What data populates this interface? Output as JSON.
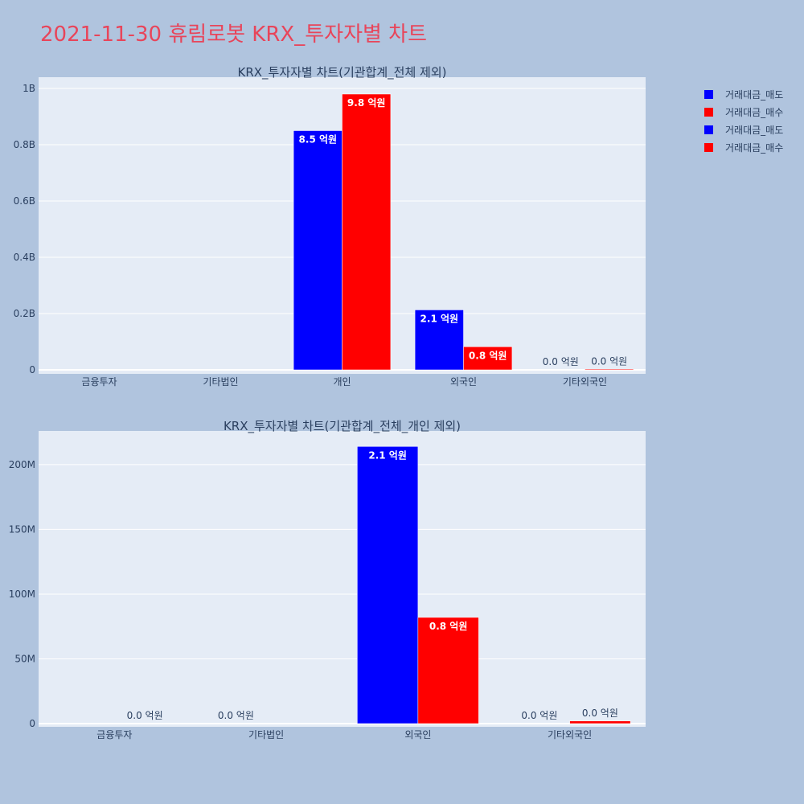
{
  "page_title": "2021-11-30 휴림로봇 KRX_투자자별 차트",
  "colors": {
    "sell": "#0000ff",
    "buy": "#ff0000",
    "plot_bg": "#e5ecf6",
    "paper_bg": "#b0c4de",
    "title": "#e8455a",
    "text": "#2a3f5f"
  },
  "legend": [
    {
      "label": "거래대금_매도",
      "color": "#0000ff"
    },
    {
      "label": "거래대금_매수",
      "color": "#ff0000"
    },
    {
      "label": "거래대금_매도",
      "color": "#0000ff"
    },
    {
      "label": "거래대금_매수",
      "color": "#ff0000"
    }
  ],
  "chart_data": [
    {
      "type": "bar",
      "title": "KRX_투자자별 차트(기관합계_전체 제외)",
      "categories": [
        "금융투자",
        "기타법인",
        "개인",
        "외국인",
        "기타외국인"
      ],
      "series": [
        {
          "name": "거래대금_매도",
          "color": "#0000ff",
          "values": [
            0,
            0,
            850000000,
            213000000,
            0
          ],
          "labels": [
            "",
            "",
            "8.5 억원",
            "2.1 억원",
            "0.0 억원"
          ]
        },
        {
          "name": "거래대금_매수",
          "color": "#ff0000",
          "values": [
            0,
            0,
            980000000,
            82000000,
            2000000
          ],
          "labels": [
            "",
            "",
            "9.8 억원",
            "0.8 억원",
            "0.0 억원"
          ]
        }
      ],
      "yticks": [
        0,
        200000000,
        400000000,
        600000000,
        800000000,
        1000000000
      ],
      "ytick_labels": [
        "0",
        "0.2B",
        "0.4B",
        "0.6B",
        "0.8B",
        "1B"
      ],
      "ylim": [
        0,
        1000000000
      ],
      "grid": true
    },
    {
      "type": "bar",
      "title": "KRX_투자자별 차트(기관합계_전체_개인 제외)",
      "categories": [
        "금융투자",
        "기타법인",
        "외국인",
        "기타외국인"
      ],
      "series": [
        {
          "name": "거래대금_매도",
          "color": "#0000ff",
          "values": [
            0,
            0,
            214000000,
            0
          ],
          "labels": [
            "",
            "0.0 억원",
            "2.1 억원",
            "0.0 억원"
          ]
        },
        {
          "name": "거래대금_매수",
          "color": "#ff0000",
          "values": [
            0,
            0,
            82000000,
            2000000
          ],
          "labels": [
            "0.0 억원",
            "",
            "0.8 억원",
            "0.0 억원"
          ]
        }
      ],
      "yticks": [
        0,
        50000000,
        100000000,
        150000000,
        200000000
      ],
      "ytick_labels": [
        "0",
        "50M",
        "100M",
        "150M",
        "200M"
      ],
      "ylim": [
        0,
        226000000
      ],
      "grid": true
    }
  ]
}
